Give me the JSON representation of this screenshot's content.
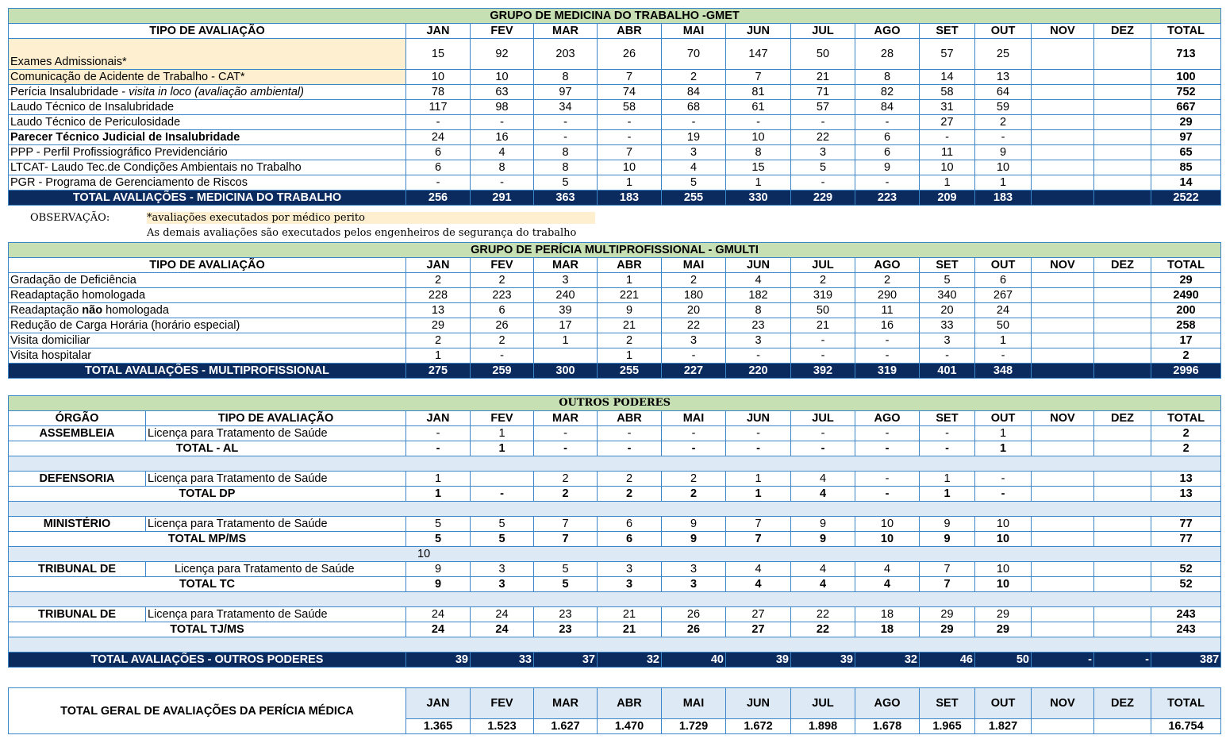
{
  "months": [
    "JAN",
    "FEV",
    "MAR",
    "ABR",
    "MAI",
    "JUN",
    "JUL",
    "AGO",
    "SET",
    "OUT",
    "NOV",
    "DEZ"
  ],
  "total_label": "TOTAL",
  "tipo_label": "TIPO DE AVALIAÇÃO",
  "orgao_label": "ÓRGÃO",
  "gmet": {
    "title": "GRUPO DE MEDICINA DO TRABALHO -GMET",
    "rows": [
      {
        "parts": [
          {
            "t": "Exames Admissionais*"
          }
        ],
        "values": [
          "15",
          "92",
          "203",
          "26",
          "70",
          "147",
          "50",
          "28",
          "57",
          "25",
          "",
          ""
        ],
        "total": "713",
        "hl": true,
        "tall": true
      },
      {
        "parts": [
          {
            "t": "Comunicação de Acidente de Trabalho - CAT*"
          }
        ],
        "values": [
          "10",
          "10",
          "8",
          "7",
          "2",
          "7",
          "21",
          "8",
          "14",
          "13",
          "",
          ""
        ],
        "total": "100",
        "hl": true
      },
      {
        "parts": [
          {
            "t": "Perícia Insalubridade - "
          },
          {
            "t": "visita in loco (avaliação ambiental)",
            "i": true
          }
        ],
        "values": [
          "78",
          "63",
          "97",
          "74",
          "84",
          "81",
          "71",
          "82",
          "58",
          "64",
          "",
          ""
        ],
        "total": "752"
      },
      {
        "parts": [
          {
            "t": "Laudo Técnico de Insalubridade"
          }
        ],
        "values": [
          "117",
          "98",
          "34",
          "58",
          "68",
          "61",
          "57",
          "84",
          "31",
          "59",
          "",
          ""
        ],
        "total": "667"
      },
      {
        "parts": [
          {
            "t": "Laudo Técnico de Periculosidade"
          }
        ],
        "values": [
          "-",
          "-",
          "-",
          "-",
          "-",
          "-",
          "-",
          "-",
          "27",
          "2",
          "",
          ""
        ],
        "total": "29"
      },
      {
        "parts": [
          {
            "t": "Parecer Técnico Judicial de Insalubridade",
            "b": true
          }
        ],
        "values": [
          "24",
          "16",
          "-",
          "-",
          "19",
          "10",
          "22",
          "6",
          "-",
          "-",
          "",
          ""
        ],
        "total": "97"
      },
      {
        "parts": [
          {
            "t": "PPP - Perfil Profissiográfico Previdenciário"
          }
        ],
        "values": [
          "6",
          "4",
          "8",
          "7",
          "3",
          "8",
          "3",
          "6",
          "11",
          "9",
          "",
          ""
        ],
        "total": "65"
      },
      {
        "parts": [
          {
            "t": "LTCAT- Laudo Tec.de Condições Ambientais no Trabalho"
          }
        ],
        "values": [
          "6",
          "8",
          "8",
          "10",
          "4",
          "15",
          "5",
          "9",
          "10",
          "10",
          "",
          ""
        ],
        "total": "85"
      },
      {
        "parts": [
          {
            "t": "PGR - Programa de Gerenciamento de Riscos"
          }
        ],
        "values": [
          "-",
          "-",
          "5",
          "1",
          "5",
          "1",
          "-",
          "-",
          "1",
          "1",
          "",
          ""
        ],
        "total": "14"
      }
    ],
    "total_row": {
      "label": "TOTAL AVALIAÇÕES - MEDICINA DO TRABALHO",
      "values": [
        "256",
        "291",
        "363",
        "183",
        "255",
        "330",
        "229",
        "223",
        "209",
        "183",
        "",
        ""
      ],
      "total": "2522"
    }
  },
  "observacao": {
    "label": "OBSERVAÇÃO:",
    "line1": "*avaliações executados por médico perito",
    "line2": "As demais avaliações são executados pelos engenheiros de segurança do trabalho"
  },
  "gmulti": {
    "title": "GRUPO DE PERÍCIA MULTIPROFISSIONAL - GMULTI",
    "rows": [
      {
        "parts": [
          {
            "t": "Gradação de Deficiência"
          }
        ],
        "values": [
          "2",
          "2",
          "3",
          "1",
          "2",
          "4",
          "2",
          "2",
          "5",
          "6",
          "",
          ""
        ],
        "total": "29"
      },
      {
        "parts": [
          {
            "t": "Readaptação homologada"
          }
        ],
        "values": [
          "228",
          "223",
          "240",
          "221",
          "180",
          "182",
          "319",
          "290",
          "340",
          "267",
          "",
          ""
        ],
        "total": "2490"
      },
      {
        "parts": [
          {
            "t": "Readaptação "
          },
          {
            "t": "não",
            "b": true
          },
          {
            "t": " homologada"
          }
        ],
        "values": [
          "13",
          "6",
          "39",
          "9",
          "20",
          "8",
          "50",
          "11",
          "20",
          "24",
          "",
          ""
        ],
        "total": "200"
      },
      {
        "parts": [
          {
            "t": "Redução de Carga Horária (horário especial)"
          }
        ],
        "values": [
          "29",
          "26",
          "17",
          "21",
          "22",
          "23",
          "21",
          "16",
          "33",
          "50",
          "",
          ""
        ],
        "total": "258"
      },
      {
        "parts": [
          {
            "t": "Visita domiciliar"
          }
        ],
        "values": [
          "2",
          "2",
          "1",
          "2",
          "3",
          "3",
          "-",
          "-",
          "3",
          "1",
          "",
          ""
        ],
        "total": "17"
      },
      {
        "parts": [
          {
            "t": "Visita hospitalar"
          }
        ],
        "values": [
          "1",
          "-",
          "",
          "1",
          "-",
          "-",
          "-",
          "-",
          "-",
          "-",
          "",
          ""
        ],
        "total": "2"
      }
    ],
    "total_row": {
      "label": "TOTAL AVALIAÇÕES - MULTIPROFISSIONAL",
      "values": [
        "275",
        "259",
        "300",
        "255",
        "227",
        "220",
        "392",
        "319",
        "401",
        "348",
        "",
        ""
      ],
      "total": "2996"
    }
  },
  "outros": {
    "title": "OUTROS PODERES",
    "groups": [
      {
        "orgao": "ASSEMBLEIA",
        "tipo": "Licença para Tratamento de Saúde",
        "values": [
          "-",
          "1",
          "-",
          "-",
          "-",
          "-",
          "-",
          "-",
          "-",
          "1",
          "",
          ""
        ],
        "total": "2",
        "total_label": "TOTAL -  AL",
        "total_values": [
          "-",
          "1",
          "-",
          "-",
          "-",
          "-",
          "-",
          "-",
          "-",
          "1",
          "",
          ""
        ],
        "total_total": "2",
        "blank_note": ""
      },
      {
        "orgao": "DEFENSORIA",
        "tipo": "Licença para Tratamento de Saúde",
        "values": [
          "1",
          "",
          "2",
          "2",
          "2",
          "1",
          "4",
          "-",
          "1",
          "-",
          "",
          ""
        ],
        "total": "13",
        "total_label": "TOTAL DP",
        "total_values": [
          "1",
          "-",
          "2",
          "2",
          "2",
          "1",
          "4",
          "-",
          "1",
          "-",
          "",
          ""
        ],
        "total_total": "13",
        "blank_note": ""
      },
      {
        "orgao": "MINISTÉRIO",
        "tipo": "Licença para Tratamento de Saúde",
        "values": [
          "5",
          "5",
          "7",
          "6",
          "9",
          "7",
          "9",
          "10",
          "9",
          "10",
          "",
          ""
        ],
        "total": "77",
        "total_label": "TOTAL MP/MS",
        "total_values": [
          "5",
          "5",
          "7",
          "6",
          "9",
          "7",
          "9",
          "10",
          "9",
          "10",
          "",
          ""
        ],
        "total_total": "77",
        "blank_note": "10"
      },
      {
        "orgao": "TRIBUNAL DE",
        "tipo": "Licença para Tratamento de Saúde",
        "indent": true,
        "values": [
          "9",
          "3",
          "5",
          "3",
          "3",
          "4",
          "4",
          "4",
          "7",
          "10",
          "",
          ""
        ],
        "total": "52",
        "total_label": "TOTAL TC",
        "total_values": [
          "9",
          "3",
          "5",
          "3",
          "3",
          "4",
          "4",
          "4",
          "7",
          "10",
          "",
          ""
        ],
        "total_total": "52",
        "blank_note": ""
      },
      {
        "orgao": "TRIBUNAL DE",
        "tipo": "Licença para Tratamento de Saúde",
        "values": [
          "24",
          "24",
          "23",
          "21",
          "26",
          "27",
          "22",
          "18",
          "29",
          "29",
          "",
          ""
        ],
        "total": "243",
        "total_label": "TOTAL TJ/MS",
        "total_values": [
          "24",
          "24",
          "23",
          "21",
          "26",
          "27",
          "22",
          "18",
          "29",
          "29",
          "",
          ""
        ],
        "total_total": "243",
        "blank_note": ""
      }
    ],
    "total_row": {
      "label": "TOTAL AVALIAÇÕES - OUTROS PODERES",
      "values": [
        "39",
        "33",
        "37",
        "32",
        "40",
        "39",
        "39",
        "32",
        "46",
        "50",
        "-",
        "-"
      ],
      "total": "387"
    }
  },
  "geral": {
    "label": "TOTAL GERAL DE AVALIAÇÕES DA PERÍCIA MÉDICA",
    "values": [
      "1.365",
      "1.523",
      "1.627",
      "1.470",
      "1.729",
      "1.672",
      "1.898",
      "1.678",
      "1.965",
      "1.827",
      "",
      ""
    ],
    "total": "16.754"
  }
}
